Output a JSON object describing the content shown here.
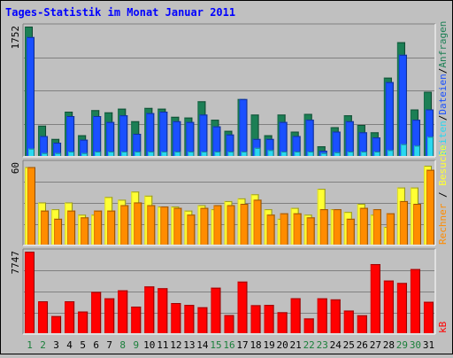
{
  "title": "Tages-Statistik im Monat Januar 2011",
  "colors": {
    "background": "#c0c0c0",
    "title": "#0000ff",
    "anfragen": "#1c7f55",
    "dateien": "#1a50ff",
    "seiten": "#2ad8f0",
    "besuche": "#ffff33",
    "rechner": "#ff8c00",
    "kb": "#ff0000",
    "weekend_label": "#1a7f3a",
    "weekday_label": "#000000"
  },
  "right_labels": {
    "top": {
      "anfragen": "Anfragen",
      "dateien": "Dateien",
      "seiten": "Seiten",
      "sep": "/"
    },
    "middle": {
      "besuche": "Besuche",
      "rechner": "Rechner",
      "sep": "/"
    },
    "bottom": {
      "kb": "kB"
    }
  },
  "chart_data": [
    {
      "type": "bar",
      "panel": "top",
      "y_max_label": "1752",
      "ylim": [
        0,
        1752
      ],
      "grid": true,
      "categories": [
        "1",
        "2",
        "3",
        "4",
        "5",
        "6",
        "7",
        "8",
        "9",
        "10",
        "11",
        "12",
        "13",
        "14",
        "15",
        "16",
        "17",
        "18",
        "19",
        "20",
        "21",
        "22",
        "23",
        "24",
        "25",
        "26",
        "27",
        "28",
        "29",
        "30",
        "31"
      ],
      "series": [
        {
          "name": "Anfragen",
          "values": [
            1752,
            410,
            230,
            600,
            280,
            620,
            590,
            640,
            470,
            650,
            640,
            530,
            520,
            740,
            490,
            340,
            770,
            560,
            280,
            560,
            330,
            570,
            130,
            390,
            550,
            420,
            320,
            1060,
            1540,
            630,
            870
          ]
        },
        {
          "name": "Dateien",
          "values": [
            1610,
            270,
            180,
            540,
            220,
            540,
            460,
            550,
            300,
            580,
            600,
            470,
            460,
            560,
            400,
            290,
            770,
            230,
            230,
            460,
            270,
            490,
            70,
            330,
            470,
            320,
            250,
            1000,
            1370,
            490,
            630
          ]
        },
        {
          "name": "Seiten",
          "values": [
            100,
            40,
            40,
            60,
            40,
            60,
            60,
            60,
            60,
            60,
            60,
            60,
            60,
            60,
            60,
            60,
            60,
            110,
            80,
            60,
            60,
            60,
            40,
            50,
            60,
            60,
            60,
            80,
            160,
            140,
            260
          ]
        }
      ]
    },
    {
      "type": "bar",
      "panel": "middle",
      "y_max_label": "60",
      "ylim": [
        0,
        60
      ],
      "grid": true,
      "categories": [
        "1",
        "2",
        "3",
        "4",
        "5",
        "6",
        "7",
        "8",
        "9",
        "10",
        "11",
        "12",
        "13",
        "14",
        "15",
        "16",
        "17",
        "18",
        "19",
        "20",
        "21",
        "22",
        "23",
        "24",
        "25",
        "26",
        "27",
        "28",
        "29",
        "30",
        "31"
      ],
      "series": [
        {
          "name": "Besuche",
          "values": [
            57,
            31,
            26,
            31,
            22,
            22,
            35,
            33,
            39,
            36,
            28,
            28,
            25,
            29,
            26,
            32,
            34,
            37,
            26,
            19,
            27,
            22,
            41,
            26,
            24,
            30,
            22,
            13,
            42,
            42,
            58
          ]
        },
        {
          "name": "Rechner",
          "values": [
            57,
            25,
            19,
            25,
            20,
            25,
            25,
            29,
            31,
            29,
            28,
            27,
            22,
            27,
            29,
            29,
            30,
            33,
            22,
            23,
            23,
            20,
            26,
            26,
            19,
            27,
            26,
            23,
            32,
            30,
            55
          ]
        }
      ]
    },
    {
      "type": "bar",
      "panel": "bottom",
      "y_max_label": "7747",
      "ylim": [
        0,
        7747
      ],
      "grid": true,
      "categories": [
        "1",
        "2",
        "3",
        "4",
        "5",
        "6",
        "7",
        "8",
        "9",
        "10",
        "11",
        "12",
        "13",
        "14",
        "15",
        "16",
        "17",
        "18",
        "19",
        "20",
        "21",
        "22",
        "23",
        "24",
        "25",
        "26",
        "27",
        "28",
        "29",
        "30",
        "31"
      ],
      "series": [
        {
          "name": "kB",
          "values": [
            7747,
            3030,
            1620,
            3030,
            2060,
            3920,
            3310,
            4070,
            2520,
            4440,
            4270,
            2860,
            2680,
            2460,
            4320,
            1720,
            4900,
            2660,
            2680,
            1990,
            3320,
            1400,
            3310,
            3210,
            2150,
            1700,
            6560,
            5000,
            4770,
            6090,
            2980
          ]
        }
      ]
    }
  ]
}
